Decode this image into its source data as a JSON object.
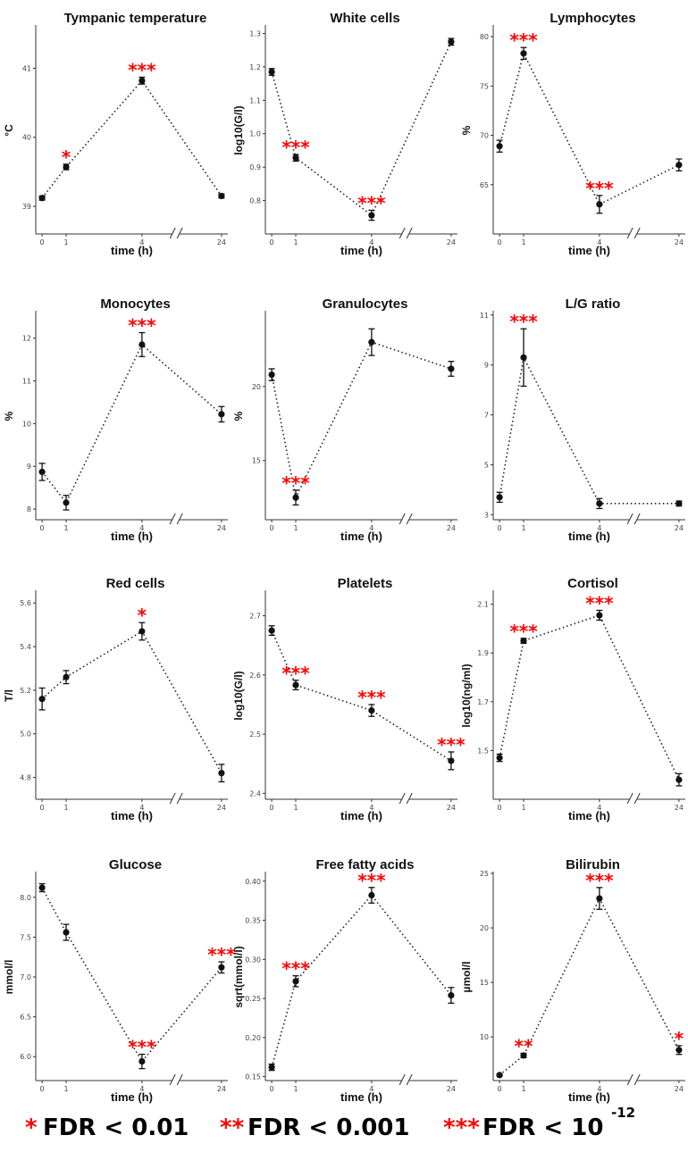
{
  "chart_data": [
    {
      "type": "line",
      "title": "Tympanic temperature",
      "ylabel": "°C",
      "xlabel": "time (h)",
      "x": [
        "0",
        "1",
        "4",
        "24"
      ],
      "y": [
        39.12,
        39.57,
        40.82,
        39.15
      ],
      "err": [
        0.03,
        0.04,
        0.05,
        0.03
      ],
      "sig": [
        "",
        "*",
        "***",
        ""
      ],
      "yticks": [
        "39",
        "40",
        "41"
      ],
      "ylim": [
        38.6,
        41.6
      ]
    },
    {
      "type": "line",
      "title": "White cells",
      "ylabel": "log10(G/l)",
      "xlabel": "time (h)",
      "x": [
        "0",
        "1",
        "4",
        "24"
      ],
      "y": [
        1.185,
        0.928,
        0.756,
        1.275
      ],
      "err": [
        0.01,
        0.01,
        0.015,
        0.01
      ],
      "sig": [
        "",
        "***",
        "***",
        ""
      ],
      "yticks": [
        "0.8",
        "0.9",
        "1.0",
        "1.1",
        "1.2",
        "1.3"
      ],
      "ylim": [
        0.7,
        1.32
      ]
    },
    {
      "type": "line",
      "title": "Lymphocytes",
      "ylabel": "%",
      "xlabel": "time (h)",
      "x": [
        "0",
        "1",
        "4",
        "24"
      ],
      "y": [
        68.9,
        78.3,
        63.0,
        67.0
      ],
      "err": [
        0.6,
        0.6,
        0.9,
        0.6
      ],
      "sig": [
        "",
        "***",
        "***",
        ""
      ],
      "yticks": [
        "65",
        "70",
        "75",
        "80"
      ],
      "ylim": [
        60,
        81
      ]
    },
    {
      "type": "line",
      "title": "Monocytes",
      "ylabel": "%",
      "xlabel": "time (h)",
      "x": [
        "0",
        "1",
        "4",
        "24"
      ],
      "y": [
        8.87,
        8.15,
        11.85,
        10.22
      ],
      "err": [
        0.2,
        0.17,
        0.28,
        0.18
      ],
      "sig": [
        "",
        "",
        "***",
        ""
      ],
      "yticks": [
        "8",
        "9",
        "10",
        "11",
        "12"
      ],
      "ylim": [
        7.75,
        12.6
      ]
    },
    {
      "type": "line",
      "title": "Granulocytes",
      "ylabel": "%",
      "xlabel": "time (h)",
      "x": [
        "0",
        "1",
        "4",
        "24"
      ],
      "y": [
        20.8,
        12.5,
        23.0,
        21.2
      ],
      "err": [
        0.4,
        0.5,
        0.9,
        0.5
      ],
      "sig": [
        "",
        "***",
        "",
        ""
      ],
      "yticks": [
        "15",
        "20"
      ],
      "ylim": [
        11,
        25
      ]
    },
    {
      "type": "line",
      "title": "L/G ratio",
      "ylabel": "",
      "xlabel": "time (h)",
      "x": [
        "0",
        "1",
        "4",
        "24"
      ],
      "y": [
        3.7,
        9.3,
        3.45,
        3.45
      ],
      "err": [
        0.2,
        1.15,
        0.2,
        0.1
      ],
      "sig": [
        "",
        "***",
        "",
        ""
      ],
      "yticks": [
        "3",
        "5",
        "7",
        "9",
        "11"
      ],
      "ylim": [
        2.8,
        11.1
      ]
    },
    {
      "type": "line",
      "title": "Red cells",
      "ylabel": "T/l",
      "xlabel": "time (h)",
      "x": [
        "0",
        "1",
        "4",
        "24"
      ],
      "y": [
        5.16,
        5.26,
        5.47,
        4.82
      ],
      "err": [
        0.05,
        0.03,
        0.04,
        0.04
      ],
      "sig": [
        "",
        "",
        "*",
        ""
      ],
      "yticks": [
        "4.8",
        "5.0",
        "5.2",
        "5.4",
        "5.6"
      ],
      "ylim": [
        4.7,
        5.65
      ]
    },
    {
      "type": "line",
      "title": "Platelets",
      "ylabel": "log10(G/l)",
      "xlabel": "time (h)",
      "x": [
        "0",
        "1",
        "4",
        "24"
      ],
      "y": [
        2.675,
        2.583,
        2.54,
        2.455
      ],
      "err": [
        0.008,
        0.008,
        0.01,
        0.015
      ],
      "sig": [
        "",
        "***",
        "***",
        "***"
      ],
      "yticks": [
        "2.4",
        "2.5",
        "2.6",
        "2.7"
      ],
      "ylim": [
        2.39,
        2.74
      ]
    },
    {
      "type": "line",
      "title": "Cortisol",
      "ylabel": "log10(ng/ml)",
      "xlabel": "time (h)",
      "x": [
        "0",
        "1",
        "4",
        "24"
      ],
      "y": [
        1.47,
        1.95,
        2.055,
        1.38
      ],
      "err": [
        0.015,
        0.01,
        0.02,
        0.025
      ],
      "sig": [
        "",
        "***",
        "***",
        ""
      ],
      "yticks": [
        "1.5",
        "1.7",
        "1.9",
        "2.1"
      ],
      "ylim": [
        1.3,
        2.15
      ]
    },
    {
      "type": "line",
      "title": "Glucose",
      "ylabel": "mmol/l",
      "xlabel": "time (h)",
      "x": [
        "0",
        "1",
        "4",
        "24"
      ],
      "y": [
        8.12,
        7.56,
        5.94,
        7.12
      ],
      "err": [
        0.05,
        0.1,
        0.09,
        0.07
      ],
      "sig": [
        "",
        "",
        "***",
        "***"
      ],
      "yticks": [
        "6.0",
        "6.5",
        "7.0",
        "7.5",
        "8.0"
      ],
      "ylim": [
        5.7,
        8.3
      ]
    },
    {
      "type": "line",
      "title": "Free fatty acids",
      "ylabel": "sqrt(mmol/l)",
      "xlabel": "time (h)",
      "x": [
        "0",
        "1",
        "4",
        "24"
      ],
      "y": [
        0.162,
        0.272,
        0.382,
        0.254
      ],
      "err": [
        0.004,
        0.007,
        0.01,
        0.01
      ],
      "sig": [
        "",
        "***",
        "***",
        ""
      ],
      "yticks": [
        "0.15",
        "0.20",
        "0.25",
        "0.30",
        "0.35",
        "0.40"
      ],
      "ylim": [
        0.145,
        0.41
      ]
    },
    {
      "type": "line",
      "title": "Bilirubin",
      "ylabel": "µmol/l",
      "xlabel": "time (h)",
      "x": [
        "0",
        "1",
        "4",
        "24"
      ],
      "y": [
        6.5,
        8.3,
        22.7,
        8.8
      ],
      "err": [
        0.1,
        0.2,
        1.0,
        0.4
      ],
      "sig": [
        "",
        "**",
        "***",
        "*"
      ],
      "yticks": [
        "10",
        "15",
        "20",
        "25"
      ],
      "ylim": [
        6,
        25
      ]
    }
  ],
  "legend": {
    "items": [
      {
        "stars": "*",
        "text": "FDR < 0.01"
      },
      {
        "stars": "**",
        "text": "FDR < 0.001"
      },
      {
        "stars": "***",
        "text": "FDR < 10",
        "sup": "-12"
      }
    ]
  },
  "colors": {
    "marker": "#111111",
    "significance": "#ff0000",
    "axis": "#333333"
  }
}
